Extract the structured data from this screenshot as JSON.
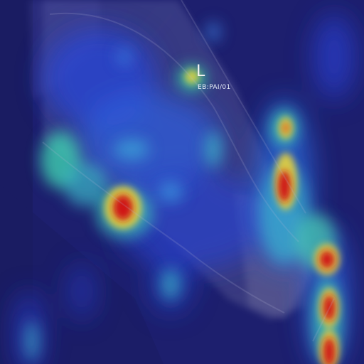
{
  "overlay": {
    "side_marker": "L",
    "image_code": "EB:PAI/01"
  },
  "colors": {
    "background": "#1d1f6e",
    "cold": "#2a34c8",
    "cool": "#3f8fe0",
    "mid": "#3fd1b0",
    "warm": "#e8d23a",
    "hot": "#d01818"
  }
}
